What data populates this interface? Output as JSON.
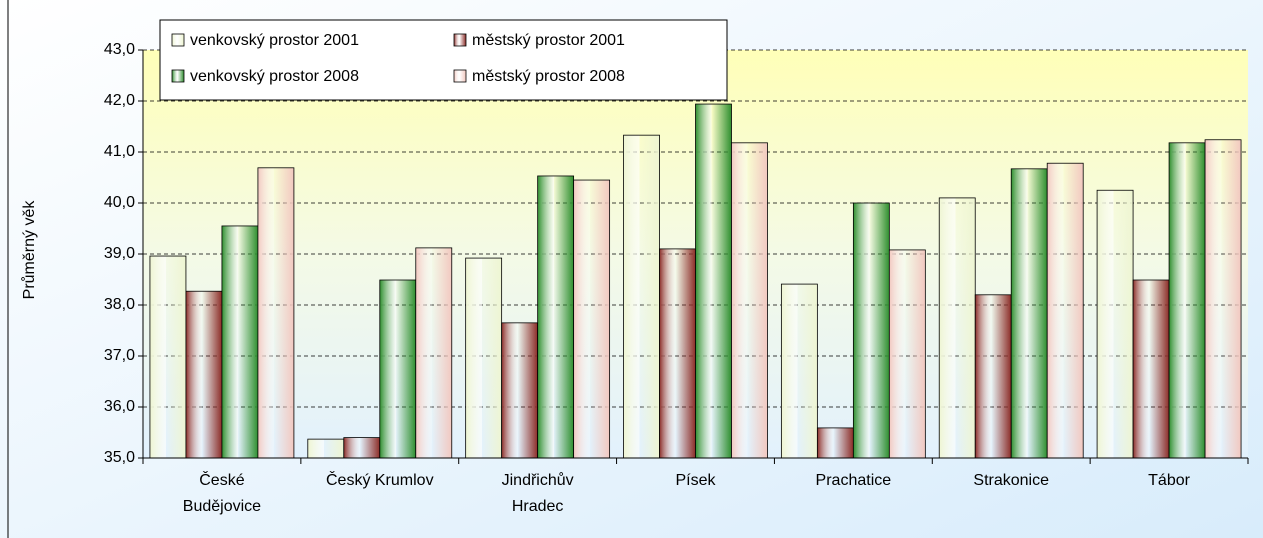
{
  "chart_data": {
    "type": "bar",
    "y_label": "Průměrný věk",
    "categories": [
      "České\nBudějovice",
      "Český Krumlov",
      "Jindřichův\nHradec",
      "Písek",
      "Prachatice",
      "Strakonice",
      "Tábor"
    ],
    "series": [
      {
        "name": "venkovský prostor 2001",
        "color": "#eef5d2",
        "values": [
          38.96,
          35.37,
          38.92,
          41.33,
          38.41,
          40.1,
          40.25
        ]
      },
      {
        "name": "městský prostor 2001",
        "color": "#8c2d28",
        "values": [
          38.27,
          35.4,
          37.65,
          39.1,
          35.59,
          38.2,
          38.49
        ]
      },
      {
        "name": "venkovský prostor 2008",
        "color": "#2f8f2f",
        "values": [
          39.55,
          38.49,
          40.53,
          41.94,
          40.0,
          40.67,
          41.18
        ]
      },
      {
        "name": "městský prostor 2008",
        "color": "#f2c8c0",
        "values": [
          40.69,
          39.12,
          40.45,
          41.18,
          39.08,
          40.78,
          41.24
        ]
      }
    ],
    "ylim": [
      35,
      43
    ],
    "yticks": [
      {
        "value": 35,
        "label": "35,0"
      },
      {
        "value": 36,
        "label": "36,0"
      },
      {
        "value": 37,
        "label": "37,0"
      },
      {
        "value": 38,
        "label": "38,0"
      },
      {
        "value": 39,
        "label": "39,0"
      },
      {
        "value": 40,
        "label": "40,0"
      },
      {
        "value": 41,
        "label": "41,0"
      },
      {
        "value": 42,
        "label": "42,0"
      },
      {
        "value": 43,
        "label": "43,0"
      }
    ],
    "grid": true
  }
}
